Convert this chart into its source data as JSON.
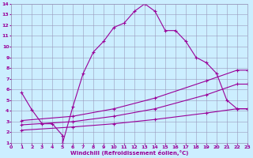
{
  "xlabel": "Windchill (Refroidissement éolien,°C)",
  "background_color": "#cceeff",
  "grid_color": "#9999bb",
  "line_color": "#990099",
  "xlim": [
    0,
    23
  ],
  "ylim": [
    1,
    14
  ],
  "xticks": [
    0,
    1,
    2,
    3,
    4,
    5,
    6,
    7,
    8,
    9,
    10,
    11,
    12,
    13,
    14,
    15,
    16,
    17,
    18,
    19,
    20,
    21,
    22,
    23
  ],
  "yticks": [
    1,
    2,
    3,
    4,
    5,
    6,
    7,
    8,
    9,
    10,
    11,
    12,
    13,
    14
  ],
  "line1_x": [
    1,
    2,
    3,
    4,
    5,
    5,
    6,
    7,
    8,
    9,
    10,
    11,
    12,
    13,
    14,
    15,
    16,
    17,
    18,
    19,
    20,
    21,
    22,
    23
  ],
  "line1_y": [
    5.7,
    4.1,
    2.8,
    2.8,
    1.7,
    1.0,
    4.4,
    7.5,
    9.5,
    10.5,
    11.8,
    12.2,
    13.3,
    14.0,
    13.3,
    11.5,
    11.5,
    10.5,
    9.0,
    8.5,
    7.5,
    5.0,
    4.2,
    4.2
  ],
  "line2_x": [
    1,
    6,
    10,
    14,
    19,
    22,
    23
  ],
  "line2_y": [
    3.1,
    3.5,
    4.2,
    5.2,
    6.8,
    7.8,
    7.8
  ],
  "line3_x": [
    1,
    6,
    10,
    14,
    19,
    22,
    23
  ],
  "line3_y": [
    2.7,
    3.0,
    3.5,
    4.2,
    5.5,
    6.5,
    6.5
  ],
  "line4_x": [
    1,
    6,
    10,
    14,
    19,
    22,
    23
  ],
  "line4_y": [
    2.2,
    2.5,
    2.8,
    3.2,
    3.8,
    4.2,
    4.2
  ]
}
